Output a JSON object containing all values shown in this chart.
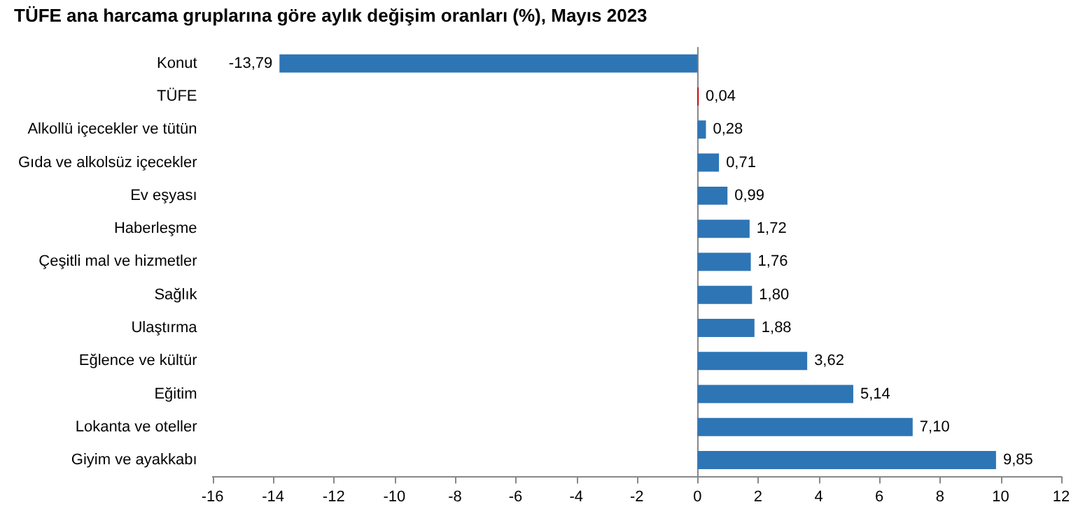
{
  "chart_data": {
    "type": "bar",
    "orientation": "horizontal",
    "title": "TÜFE ana harcama gruplarına göre aylık değişim oranları (%), Mayıs 2023",
    "categories": [
      "Konut",
      "TÜFE",
      "Alkollü içecekler ve tütün",
      "Gıda ve alkolsüz içecekler",
      "Ev eşyası",
      "Haberleşme",
      "Çeşitli mal ve hizmetler",
      "Sağlık",
      "Ulaştırma",
      "Eğlence ve kültür",
      "Eğitim",
      "Lokanta ve oteller",
      "Giyim ve ayakkabı"
    ],
    "values": [
      -13.79,
      0.04,
      0.28,
      0.71,
      0.99,
      1.72,
      1.76,
      1.8,
      1.88,
      3.62,
      5.14,
      7.1,
      9.85
    ],
    "value_labels": [
      "-13,79",
      "0,04",
      "0,28",
      "0,71",
      "0,99",
      "1,72",
      "1,76",
      "1,80",
      "1,88",
      "3,62",
      "5,14",
      "7,10",
      "9,85"
    ],
    "colors": [
      "#2e75b6",
      "#c00000",
      "#2e75b6",
      "#2e75b6",
      "#2e75b6",
      "#2e75b6",
      "#2e75b6",
      "#2e75b6",
      "#2e75b6",
      "#2e75b6",
      "#2e75b6",
      "#2e75b6",
      "#2e75b6"
    ],
    "xlim": [
      -16,
      12
    ],
    "xticks": [
      -16,
      -14,
      -12,
      -10,
      -8,
      -6,
      -4,
      -2,
      0,
      2,
      4,
      6,
      8,
      10,
      12
    ],
    "ref_lines": [
      {
        "axis": "x",
        "value": 0,
        "color": "#888888"
      }
    ],
    "grid": false,
    "legend": false
  }
}
